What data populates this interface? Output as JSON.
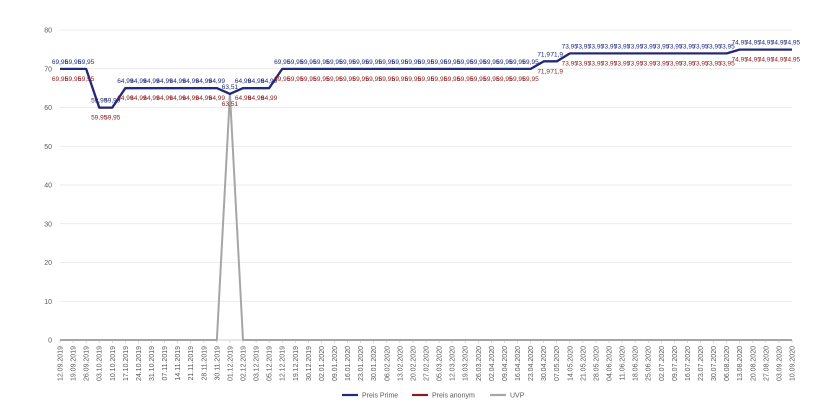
{
  "chart_data": {
    "type": "line",
    "title": "",
    "xlabel": "",
    "ylabel": "",
    "ylim": [
      0,
      80
    ],
    "yticks": [
      "0",
      "10",
      "20",
      "30",
      "40",
      "50",
      "60",
      "70",
      "80"
    ],
    "grid": true,
    "legend_position": "bottom",
    "categories": [
      "12.09.2019",
      "19.09.2019",
      "26.09.2019",
      "03.10.2019",
      "10.10.2019",
      "17.10.2019",
      "24.10.2019",
      "31.10.2019",
      "07.11.2019",
      "14.11.2019",
      "21.11.2019",
      "28.11.2019",
      "30.11.2019",
      "01.12.2019",
      "02.12.2019",
      "03.12.2019",
      "05.12.2019",
      "12.12.2019",
      "19.12.2019",
      "30.12.2019",
      "02.01.2020",
      "09.01.2020",
      "16.01.2020",
      "23.01.2020",
      "30.01.2020",
      "06.02.2020",
      "13.02.2020",
      "20.02.2020",
      "27.02.2020",
      "05.03.2020",
      "12.03.2020",
      "19.03.2020",
      "26.03.2020",
      "02.04.2020",
      "09.04.2020",
      "16.04.2020",
      "23.04.2020",
      "30.04.2020",
      "07.05.2020",
      "14.05.2020",
      "21.05.2020",
      "28.05.2020",
      "04.06.2020",
      "11.06.2020",
      "18.06.2020",
      "25.06.2020",
      "02.07.2020",
      "09.07.2020",
      "16.07.2020",
      "23.07.2020",
      "30.07.2020",
      "06.08.2020",
      "13.08.2020",
      "20.08.2020",
      "27.08.2020",
      "03.09.2020",
      "10.09.2020"
    ],
    "series": [
      {
        "name": "Preis Prime",
        "color": "#1f2a7c",
        "values": [
          69.95,
          69.95,
          69.95,
          59.99,
          59.99,
          64.99,
          64.99,
          64.99,
          64.99,
          64.99,
          64.99,
          64.99,
          64.99,
          63.51,
          64.99,
          64.99,
          64.99,
          69.95,
          69.95,
          69.95,
          69.95,
          69.95,
          69.95,
          69.95,
          69.95,
          69.95,
          69.95,
          69.95,
          69.95,
          69.95,
          69.95,
          69.95,
          69.95,
          69.95,
          69.95,
          69.95,
          69.95,
          71.9,
          71.9,
          73.95,
          73.95,
          73.95,
          73.95,
          73.95,
          73.95,
          73.95,
          73.95,
          73.95,
          73.95,
          73.95,
          73.95,
          73.95,
          74.95,
          74.95,
          74.95,
          74.95,
          74.95
        ],
        "labels": [
          "69,95",
          "69,95",
          "69,95",
          "59,99",
          "59,99",
          "64,99",
          "64,99",
          "64,99",
          "64,99",
          "64,99",
          "64,99",
          "64,99",
          "64,99",
          "63,51",
          "64,99",
          "64,99",
          "64,99",
          "69,95",
          "69,95",
          "69,95",
          "69,95",
          "69,95",
          "69,95",
          "69,95",
          "69,95",
          "69,95",
          "69,95",
          "69,95",
          "69,95",
          "69,95",
          "69,95",
          "69,95",
          "69,95",
          "69,95",
          "69,95",
          "69,95",
          "69,95",
          "71,9",
          "71,9",
          "73,95",
          "73,95",
          "73,95",
          "73,95",
          "73,95",
          "73,95",
          "73,95",
          "73,95",
          "73,95",
          "73,95",
          "73,95",
          "73,95",
          "73,95",
          "74,95",
          "74,95",
          "74,95",
          "74,95",
          "74,95"
        ]
      },
      {
        "name": "Preis anonym",
        "color": "#8b1a1a",
        "values": [
          69.95,
          69.95,
          69.95,
          59.95,
          59.95,
          64.99,
          64.99,
          64.99,
          64.99,
          64.99,
          64.99,
          64.99,
          64.99,
          63.51,
          64.99,
          64.99,
          64.99,
          69.95,
          69.95,
          69.95,
          69.95,
          69.95,
          69.95,
          69.95,
          69.95,
          69.95,
          69.95,
          69.95,
          69.95,
          69.95,
          69.95,
          69.95,
          69.95,
          69.95,
          69.95,
          69.95,
          69.95,
          71.9,
          71.9,
          73.95,
          73.95,
          73.95,
          73.95,
          73.95,
          73.95,
          73.95,
          73.95,
          73.95,
          73.95,
          73.95,
          73.95,
          73.95,
          74.95,
          74.95,
          74.95,
          74.95,
          74.95
        ],
        "labels": [
          "69,95",
          "69,95",
          "69,95",
          "59,95",
          "59,95",
          "64,99",
          "64,99",
          "64,99",
          "64,99",
          "64,99",
          "64,99",
          "64,99",
          "64,99",
          "63,51",
          "64,99",
          "64,99",
          "64,99",
          "69,95",
          "69,95",
          "69,95",
          "69,95",
          "69,95",
          "69,95",
          "69,95",
          "69,95",
          "69,95",
          "69,95",
          "69,95",
          "69,95",
          "69,95",
          "69,95",
          "69,95",
          "69,95",
          "69,95",
          "69,95",
          "69,95",
          "69,95",
          "71,9",
          "71,9",
          "73,95",
          "73,95",
          "73,95",
          "73,95",
          "73,95",
          "73,95",
          "73,95",
          "73,95",
          "73,95",
          "73,95",
          "73,95",
          "73,95",
          "73,95",
          "74,95",
          "74,95",
          "74,95",
          "74,95",
          "74,95"
        ]
      },
      {
        "name": "UVP",
        "color": "#a6a6a6",
        "values": [
          0,
          0,
          0,
          0,
          0,
          0,
          0,
          0,
          0,
          0,
          0,
          0,
          0,
          63.51,
          0,
          0,
          0,
          0,
          0,
          0,
          0,
          0,
          0,
          0,
          0,
          0,
          0,
          0,
          0,
          0,
          0,
          0,
          0,
          0,
          0,
          0,
          0,
          0,
          0,
          0,
          0,
          0,
          0,
          0,
          0,
          0,
          0,
          0,
          0,
          0,
          0,
          0,
          0,
          0,
          0,
          0,
          0
        ],
        "labels": []
      }
    ]
  }
}
